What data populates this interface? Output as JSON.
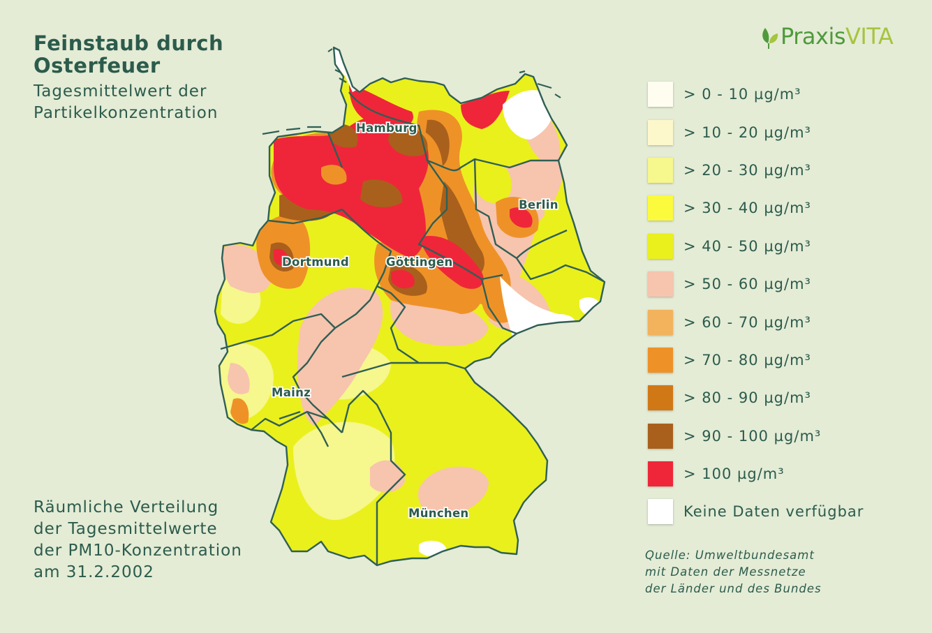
{
  "title": [
    "Feinstaub durch",
    "Osterfeuer"
  ],
  "subtitle": [
    "Tagesmittelwert der",
    "Partikelkonzentration"
  ],
  "description": [
    "Räumliche Verteilung",
    "der Tagesmittelwerte",
    "der PM10-Konzentration",
    "am 31.2.2002"
  ],
  "logo": {
    "name_part1": "Praxis",
    "name_part2": "VITA",
    "icon": "leaf-icon"
  },
  "legend": [
    {
      "label": "> 0 - 10 µg/m³",
      "color": "#fffdf0"
    },
    {
      "label": "> 10 - 20 µg/m³",
      "color": "#fdf8cc"
    },
    {
      "label": "> 20 - 30 µg/m³",
      "color": "#f6f78c"
    },
    {
      "label": "> 30 - 40 µg/m³",
      "color": "#fbfa3c"
    },
    {
      "label": "> 40 - 50 µg/m³",
      "color": "#eaf01c"
    },
    {
      "label": "> 50 - 60 µg/m³",
      "color": "#f7c4ae"
    },
    {
      "label": "> 60 - 70 µg/m³",
      "color": "#f3b35c"
    },
    {
      "label": "> 70 - 80 µg/m³",
      "color": "#ee9228"
    },
    {
      "label": "> 80 - 90 µg/m³",
      "color": "#d17816"
    },
    {
      "label": "> 90 - 100 µg/m³",
      "color": "#a9601c"
    },
    {
      "label": "> 100 µg/m³",
      "color": "#ef2639"
    },
    {
      "label": "Keine Daten verfügbar",
      "color": "#ffffff"
    }
  ],
  "source": [
    "Quelle: Umweltbundesamt",
    "mit Daten der Messnetze",
    "der Länder und des Bundes"
  ],
  "cities": {
    "hamburg": "Hamburg",
    "berlin": "Berlin",
    "dortmund": "Dortmund",
    "goettingen": "Göttingen",
    "mainz": "Mainz",
    "muenchen": "München"
  }
}
